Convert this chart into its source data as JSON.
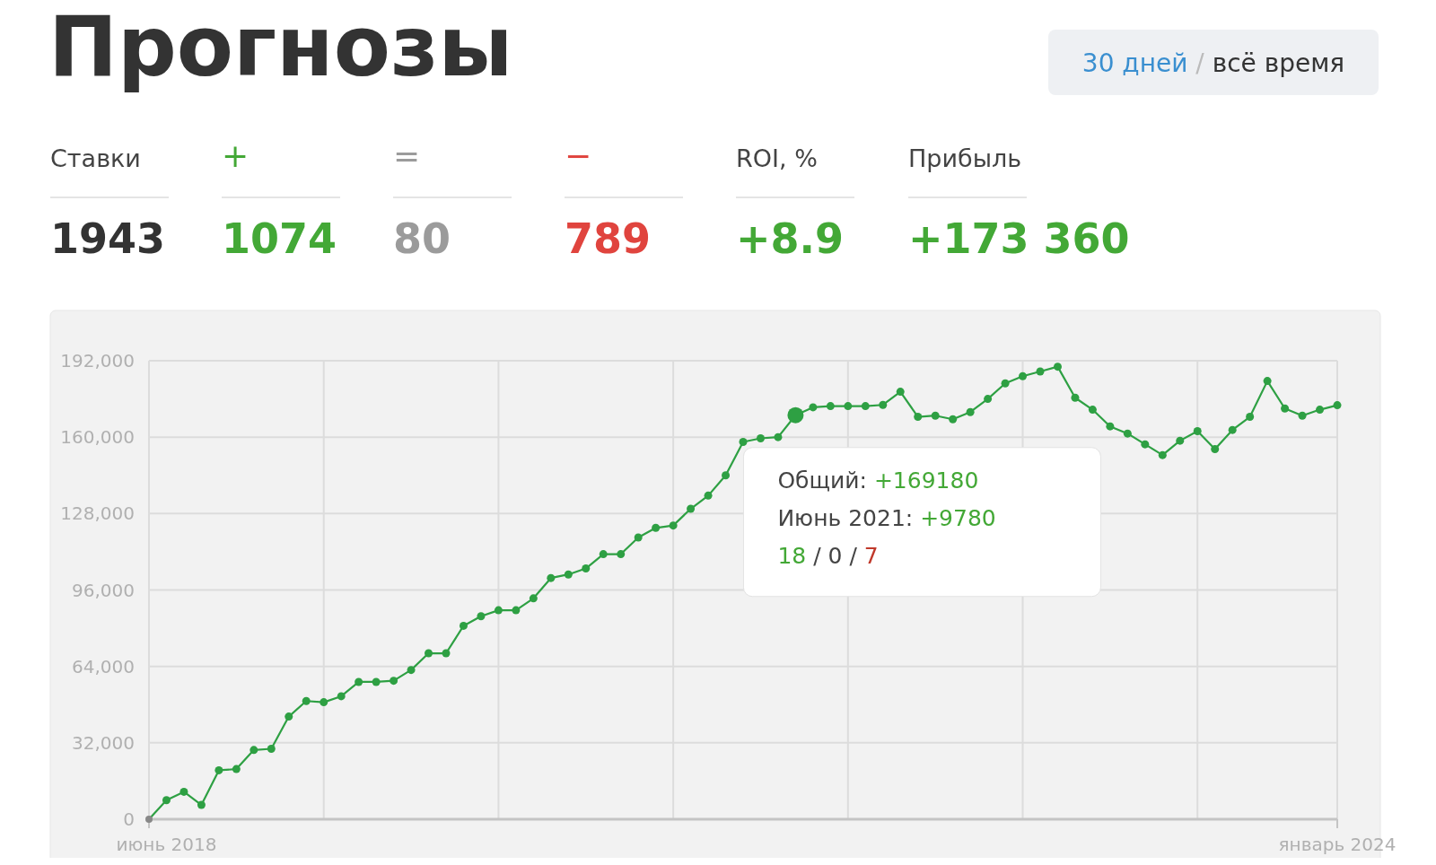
{
  "chart_data": {
    "type": "line",
    "title": "Прогнозы",
    "categories": [
      null,
      "июнь 2018",
      null,
      null,
      null,
      null,
      null,
      null,
      null,
      null,
      null,
      null,
      null,
      null,
      null,
      null,
      null,
      null,
      null,
      null,
      null,
      null,
      null,
      null,
      null,
      null,
      null,
      null,
      null,
      null,
      null,
      null,
      null,
      null,
      null,
      null,
      null,
      null,
      null,
      null,
      null,
      null,
      null,
      null,
      null,
      null,
      null,
      null,
      null,
      null,
      null,
      null,
      null,
      null,
      null,
      null,
      null,
      null,
      null,
      null,
      null,
      null,
      null,
      null,
      null,
      null,
      null,
      null,
      "январь 2024"
    ],
    "series": [
      {
        "color": "#2ea043",
        "values": [
          0,
          8000,
          11500,
          6000,
          20500,
          21000,
          29000,
          29500,
          43000,
          49500,
          49000,
          51500,
          57500,
          57500,
          58000,
          62500,
          69500,
          69500,
          81000,
          85000,
          87500,
          87500,
          92500,
          101000,
          102500,
          105000,
          111000,
          111000,
          118000,
          122000,
          123000,
          130000,
          135500,
          144000,
          158000,
          159500,
          160000,
          169180,
          172500,
          173000,
          173000,
          173000,
          173500,
          179000,
          168500,
          169000,
          167500,
          170500,
          176000,
          182500,
          185500,
          187500,
          189500,
          176500,
          171500,
          164500,
          161500,
          157000,
          152500,
          158500,
          162500,
          155000,
          163000,
          168500,
          183500,
          172000,
          169000,
          171500,
          173360
        ]
      }
    ],
    "ylim": [
      0,
      192000
    ],
    "yticks": [
      {
        "value": 0,
        "label": "0"
      },
      {
        "value": 32000,
        "label": "32,000"
      },
      {
        "value": 64000,
        "label": "64,000"
      },
      {
        "value": 96000,
        "label": "96,000"
      },
      {
        "value": 128000,
        "label": "128,000"
      },
      {
        "value": 160000,
        "label": "160,000"
      },
      {
        "value": 192000,
        "label": "192,000"
      }
    ],
    "grid": true,
    "marker": "circle",
    "line_style": "solid",
    "annotations": [
      "30 дней / всё время",
      "Ставки",
      "+",
      "=",
      "−",
      "ROI, %",
      "Прибыль",
      "1943",
      "1074",
      "80",
      "789",
      "+8.9",
      "+173 360",
      "Июнь 2021: +9780",
      "18 / 0 / 7",
      "Общий: +169180"
    ]
  }
}
